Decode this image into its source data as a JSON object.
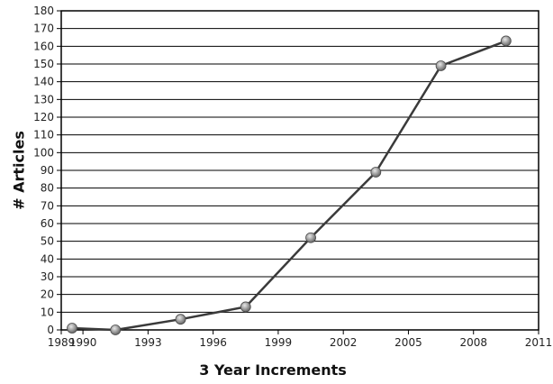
{
  "chart_data": {
    "type": "line",
    "xlabel": "3 Year Increments",
    "ylabel": "# Articles",
    "xlim": [
      1989,
      2011
    ],
    "ylim": [
      0,
      180
    ],
    "x_ticks": [
      1989,
      1990,
      1993,
      1996,
      1999,
      2002,
      2005,
      2008,
      2011
    ],
    "y_ticks": [
      0,
      10,
      20,
      30,
      40,
      50,
      60,
      70,
      80,
      90,
      100,
      110,
      120,
      130,
      140,
      150,
      160,
      170,
      180
    ],
    "grid": "horizontal",
    "series": [
      {
        "x": [
          1989.5,
          1991.5,
          1994.5,
          1997.5,
          2000.5,
          2003.5,
          2006.5,
          2009.5
        ],
        "y": [
          1,
          0,
          6,
          13,
          52,
          89,
          149,
          163
        ]
      }
    ],
    "colors": {
      "line": "#3a3a3a",
      "marker": "#8a8a8a",
      "grid": "#000000"
    }
  }
}
